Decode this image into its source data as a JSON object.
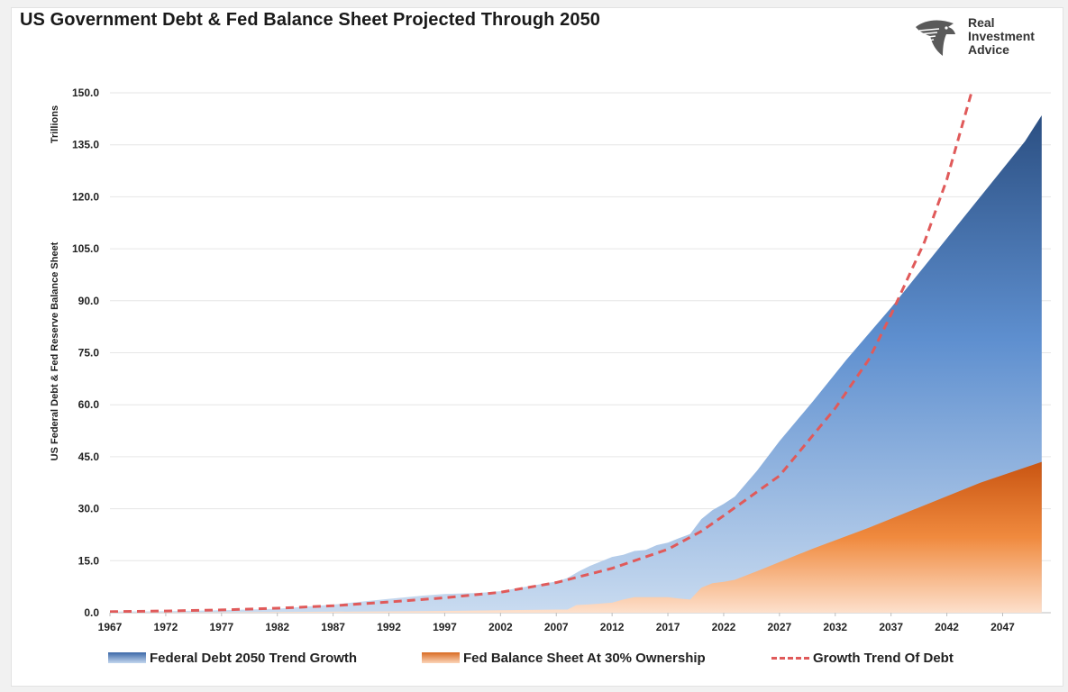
{
  "header": {
    "title": "US Government Debt & Fed Balance Sheet Projected Through 2050"
  },
  "logo": {
    "text": "Real\nInvestment\nAdvice",
    "icon": "eagle-head-logo-icon"
  },
  "colors": {
    "debt_dark": "#2b4f82",
    "debt_mid": "#5e8fcf",
    "debt_light": "#c9dbf0",
    "fed_dark": "#c95512",
    "fed_mid": "#f08a3e",
    "fed_light": "#fde0cc",
    "trend": "#e05a5a",
    "grid": "#e6e6e6"
  },
  "legend": {
    "debt": "Federal Debt 2050 Trend Growth",
    "fed": "Fed Balance Sheet At 30% Ownership",
    "trend": "Growth Trend Of Debt"
  },
  "chart_data": {
    "type": "area",
    "title": "US Government Debt & Fed Balance Sheet Projected Through 2050",
    "ylabel_top": "Trillions",
    "ylabel": "US Federal Debt & Fed Reserve Balance Sheet",
    "xlabel": "",
    "xlim": [
      1967,
      2051
    ],
    "ylim": [
      0,
      150
    ],
    "y_ticks": [
      0,
      15,
      30,
      45,
      60,
      75,
      90,
      105,
      120,
      135,
      150
    ],
    "y_tick_labels": [
      "0.0",
      "15.0",
      "30.0",
      "45.0",
      "60.0",
      "75.0",
      "90.0",
      "105.0",
      "120.0",
      "135.0",
      "150.0"
    ],
    "x_ticks": [
      "1967",
      "1972",
      "1977",
      "1982",
      "1987",
      "1992",
      "1997",
      "2002",
      "2007",
      "2012",
      "2017",
      "2022",
      "2027",
      "2032",
      "2037",
      "2042",
      "2047"
    ],
    "grid": "horizontal",
    "legend_position": "bottom",
    "series": [
      {
        "name": "Federal Debt 2050 Trend Growth",
        "kind": "area",
        "points": [
          [
            1967,
            0.33
          ],
          [
            1972,
            0.43
          ],
          [
            1977,
            0.71
          ],
          [
            1982,
            1.14
          ],
          [
            1987,
            2.35
          ],
          [
            1992,
            4.0
          ],
          [
            1995,
            4.9
          ],
          [
            1997,
            5.4
          ],
          [
            2000,
            5.7
          ],
          [
            2002,
            6.2
          ],
          [
            2005,
            7.9
          ],
          [
            2007,
            9.0
          ],
          [
            2008,
            10.0
          ],
          [
            2009,
            11.9
          ],
          [
            2010,
            13.5
          ],
          [
            2011,
            14.8
          ],
          [
            2012,
            16.1
          ],
          [
            2013,
            16.7
          ],
          [
            2014,
            17.8
          ],
          [
            2015,
            18.1
          ],
          [
            2016,
            19.5
          ],
          [
            2017,
            20.2
          ],
          [
            2018,
            21.5
          ],
          [
            2019,
            22.7
          ],
          [
            2020,
            27.0
          ],
          [
            2021,
            29.6
          ],
          [
            2022,
            31.4
          ],
          [
            2023,
            33.5
          ],
          [
            2025,
            41
          ],
          [
            2027,
            49.5
          ],
          [
            2030,
            61
          ],
          [
            2033,
            73
          ],
          [
            2037,
            88
          ],
          [
            2040,
            100
          ],
          [
            2043,
            112
          ],
          [
            2046,
            124
          ],
          [
            2049,
            136
          ],
          [
            2050.5,
            143.5
          ]
        ]
      },
      {
        "name": "Fed Balance Sheet At 30% Ownership",
        "kind": "area",
        "points": [
          [
            1967,
            0.05
          ],
          [
            1975,
            0.1
          ],
          [
            1985,
            0.25
          ],
          [
            1995,
            0.45
          ],
          [
            2002,
            0.7
          ],
          [
            2007,
            0.9
          ],
          [
            2008,
            0.9
          ],
          [
            2008.8,
            2.2
          ],
          [
            2010,
            2.4
          ],
          [
            2012,
            2.9
          ],
          [
            2013,
            3.8
          ],
          [
            2014,
            4.5
          ],
          [
            2017,
            4.5
          ],
          [
            2018,
            4.1
          ],
          [
            2019,
            3.8
          ],
          [
            2020,
            7.2
          ],
          [
            2021,
            8.5
          ],
          [
            2022,
            8.9
          ],
          [
            2023,
            9.5
          ],
          [
            2025,
            12
          ],
          [
            2030,
            18.5
          ],
          [
            2035,
            24.5
          ],
          [
            2040,
            31
          ],
          [
            2045,
            37.5
          ],
          [
            2050.5,
            43.5
          ]
        ]
      },
      {
        "name": "Growth Trend Of Debt",
        "kind": "line-dashed",
        "points": [
          [
            1967,
            0.3
          ],
          [
            1972,
            0.5
          ],
          [
            1977,
            0.8
          ],
          [
            1982,
            1.3
          ],
          [
            1987,
            2.0
          ],
          [
            1992,
            3.1
          ],
          [
            1997,
            4.3
          ],
          [
            2002,
            5.9
          ],
          [
            2007,
            8.7
          ],
          [
            2012,
            12.8
          ],
          [
            2017,
            18.3
          ],
          [
            2020,
            23.5
          ],
          [
            2022,
            28.0
          ],
          [
            2027,
            39.5
          ],
          [
            2032,
            59
          ],
          [
            2035,
            73
          ],
          [
            2037,
            86
          ],
          [
            2040,
            107
          ],
          [
            2042,
            125
          ],
          [
            2044.2,
            150
          ]
        ]
      }
    ]
  }
}
